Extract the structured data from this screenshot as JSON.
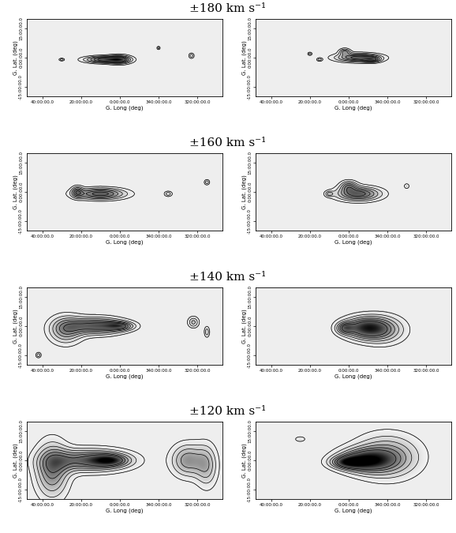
{
  "row_titles": [
    "±180 km s⁻¹",
    "±160 km s⁻¹",
    "±140 km s⁻¹",
    "±120 km s⁻¹"
  ],
  "chart_data": [
    {
      "type": "contour",
      "x_label": "G. Long (deg)",
      "y_label": "G. Lat. (deg)",
      "xlim": [
        48,
        -53
      ],
      "ylim": [
        -20,
        20
      ],
      "xticks": [
        {
          "value": 40,
          "label": "40:00:00.0"
        },
        {
          "value": 20,
          "label": "20:00:00.0"
        },
        {
          "value": 0,
          "label": "0:00:00.0"
        },
        {
          "value": -20,
          "label": "340:00:00.0"
        },
        {
          "value": -40,
          "label": "320:00:00.0"
        }
      ],
      "yticks": [
        {
          "value": -15,
          "label": "-15:00:00.0"
        },
        {
          "value": 0,
          "label": "0:00:00.0"
        },
        {
          "value": 15,
          "label": "15:00:00.0"
        }
      ],
      "contour_levels": [
        0.15,
        0.3,
        0.45,
        0.6,
        0.75,
        0.9
      ],
      "components": [
        [
          8,
          -1,
          7,
          1.2,
          1.0
        ],
        [
          0,
          -1,
          4,
          1.5,
          0.8
        ],
        [
          30,
          -1,
          1,
          0.5,
          0.4
        ],
        [
          -20,
          5,
          0.6,
          0.6,
          0.4
        ],
        [
          -37,
          1,
          1,
          1,
          0.4
        ]
      ]
    },
    {
      "type": "contour",
      "x_label": "G. Long (deg)",
      "y_label": "G. Lat. (deg)",
      "xlim": [
        48,
        -53
      ],
      "ylim": [
        -20,
        20
      ],
      "xticks": [
        {
          "value": 40,
          "label": "40:00:00.0"
        },
        {
          "value": 20,
          "label": "20:00:00.0"
        },
        {
          "value": 0,
          "label": "0:00:00.0"
        },
        {
          "value": -20,
          "label": "340:00:00.0"
        },
        {
          "value": -40,
          "label": "320:00:00.0"
        }
      ],
      "yticks": [
        {
          "value": -15,
          "label": "-15:00:00.0"
        },
        {
          "value": 0,
          "label": "0:00:00.0"
        },
        {
          "value": 15,
          "label": "15:00:00.0"
        }
      ],
      "contour_levels": [
        0.15,
        0.3,
        0.45,
        0.6,
        0.75,
        0.9
      ],
      "components": [
        [
          -5,
          0,
          8,
          1.5,
          1.0
        ],
        [
          2,
          3,
          2,
          1.2,
          0.6
        ],
        [
          -12,
          -1,
          3,
          1,
          0.6
        ],
        [
          15,
          -1,
          1,
          0.6,
          0.4
        ],
        [
          20,
          2,
          0.8,
          0.6,
          0.4
        ]
      ]
    },
    {
      "type": "contour",
      "x_label": "G. Long (deg)",
      "y_label": "G. Lat. (deg)",
      "xlim": [
        48,
        -53
      ],
      "ylim": [
        -20,
        20
      ],
      "xticks": [
        {
          "value": 40,
          "label": "40:00:00.0"
        },
        {
          "value": 20,
          "label": "20:00:00.0"
        },
        {
          "value": 0,
          "label": "0:00:00.0"
        },
        {
          "value": -20,
          "label": "340:00:00.0"
        },
        {
          "value": -40,
          "label": "320:00:00.0"
        }
      ],
      "yticks": [
        {
          "value": -15,
          "label": "-15:00:00.0"
        },
        {
          "value": 0,
          "label": "0:00:00.0"
        },
        {
          "value": 15,
          "label": "15:00:00.0"
        }
      ],
      "contour_levels": [
        0.15,
        0.3,
        0.45,
        0.6,
        0.75,
        0.9
      ],
      "components": [
        [
          10,
          -1,
          9,
          2,
          1.0
        ],
        [
          22,
          0,
          2,
          2,
          0.6
        ],
        [
          -25,
          -1,
          1.5,
          1,
          0.4
        ],
        [
          -45,
          5,
          1,
          1,
          0.4
        ]
      ]
    },
    {
      "type": "contour",
      "x_label": "G. Long (deg)",
      "y_label": "G. Lat. (deg)",
      "xlim": [
        48,
        -53
      ],
      "ylim": [
        -20,
        20
      ],
      "xticks": [
        {
          "value": 40,
          "label": "40:00:00.0"
        },
        {
          "value": 20,
          "label": "20:00:00.0"
        },
        {
          "value": 0,
          "label": "0:00:00.0"
        },
        {
          "value": -20,
          "label": "340:00:00.0"
        },
        {
          "value": -40,
          "label": "320:00:00.0"
        }
      ],
      "yticks": [
        {
          "value": -15,
          "label": "-15:00:00.0"
        },
        {
          "value": 0,
          "label": "0:00:00.0"
        },
        {
          "value": 15,
          "label": "15:00:00.0"
        }
      ],
      "contour_levels": [
        0.15,
        0.3,
        0.45,
        0.6,
        0.75,
        0.9
      ],
      "components": [
        [
          -5,
          -1,
          8,
          2.5,
          1.0
        ],
        [
          0,
          3,
          3,
          2,
          0.6
        ],
        [
          10,
          -1,
          1.5,
          1,
          0.4
        ],
        [
          -30,
          3,
          1,
          1,
          0.3
        ]
      ]
    },
    {
      "type": "contour",
      "x_label": "G. Long (deg)",
      "y_label": "G. Lat. (deg)",
      "xlim": [
        48,
        -53
      ],
      "ylim": [
        -20,
        20
      ],
      "xticks": [
        {
          "value": 40,
          "label": "40:00:00.0"
        },
        {
          "value": 20,
          "label": "20:00:00.0"
        },
        {
          "value": 0,
          "label": "0:00:00.0"
        },
        {
          "value": -20,
          "label": "340:00:00.0"
        },
        {
          "value": -40,
          "label": "320:00:00.0"
        }
      ],
      "yticks": [
        {
          "value": -15,
          "label": "-15:00:00.0"
        },
        {
          "value": 0,
          "label": "0:00:00.0"
        },
        {
          "value": 15,
          "label": "15:00:00.0"
        }
      ],
      "contour_levels": [
        0.15,
        0.3,
        0.45,
        0.6,
        0.75,
        0.9
      ],
      "components": [
        [
          12,
          0,
          10,
          3,
          1.0
        ],
        [
          28,
          -2,
          6,
          5,
          0.7
        ],
        [
          0,
          0,
          5,
          1.5,
          0.7
        ],
        [
          -38,
          2,
          2,
          2,
          0.5
        ],
        [
          -45,
          -3,
          1,
          2,
          0.4
        ],
        [
          42,
          -15,
          1,
          1,
          0.4
        ]
      ]
    },
    {
      "type": "contour",
      "x_label": "G. Long (deg)",
      "y_label": "G. Lat. (deg)",
      "xlim": [
        48,
        -53
      ],
      "ylim": [
        -20,
        20
      ],
      "xticks": [
        {
          "value": 40,
          "label": "40:00:00.0"
        },
        {
          "value": 20,
          "label": "20:00:00.0"
        },
        {
          "value": 0,
          "label": "0:00:00.0"
        },
        {
          "value": -20,
          "label": "340:00:00.0"
        },
        {
          "value": -40,
          "label": "320:00:00.0"
        }
      ],
      "yticks": [
        {
          "value": -15,
          "label": "-15:00:00.0"
        },
        {
          "value": 0,
          "label": "0:00:00.0"
        },
        {
          "value": 15,
          "label": "15:00:00.0"
        }
      ],
      "contour_levels": [
        0.15,
        0.3,
        0.45,
        0.6,
        0.75,
        0.9
      ],
      "components": [
        [
          -8,
          -1,
          8,
          4,
          1.0
        ],
        [
          -18,
          -2,
          8,
          5,
          0.6
        ],
        [
          2,
          -1,
          3,
          2,
          0.6
        ]
      ]
    },
    {
      "type": "contour",
      "x_label": "G. Long (deg)",
      "y_label": "G. Lat. (deg)",
      "xlim": [
        48,
        -53
      ],
      "ylim": [
        -20,
        20
      ],
      "xticks": [
        {
          "value": 40,
          "label": "40:00:00.0"
        },
        {
          "value": 20,
          "label": "20:00:00.0"
        },
        {
          "value": 0,
          "label": "0:00:00.0"
        },
        {
          "value": -20,
          "label": "340:00:00.0"
        },
        {
          "value": -40,
          "label": "320:00:00.0"
        }
      ],
      "yticks": [
        {
          "value": -15,
          "label": "-15:00:00.0"
        },
        {
          "value": 0,
          "label": "0:00:00.0"
        },
        {
          "value": 15,
          "label": "15:00:00.0"
        }
      ],
      "contour_levels": [
        0.15,
        0.3,
        0.45,
        0.6,
        0.75,
        0.9
      ],
      "components": [
        [
          15,
          0,
          14,
          4,
          1.0
        ],
        [
          35,
          -5,
          6,
          10,
          0.8
        ],
        [
          -35,
          0,
          6,
          6,
          0.7
        ],
        [
          -45,
          -3,
          4,
          8,
          0.5
        ],
        [
          5,
          0,
          6,
          2,
          0.7
        ]
      ]
    },
    {
      "type": "contour",
      "x_label": "G. Long (deg)",
      "y_label": "G. Lat. (deg)",
      "xlim": [
        48,
        -53
      ],
      "ylim": [
        -20,
        20
      ],
      "xticks": [
        {
          "value": 40,
          "label": "40:00:00.0"
        },
        {
          "value": 20,
          "label": "20:00:00.0"
        },
        {
          "value": 0,
          "label": "0:00:00.0"
        },
        {
          "value": -20,
          "label": "340:00:00.0"
        },
        {
          "value": -40,
          "label": "320:00:00.0"
        }
      ],
      "yticks": [
        {
          "value": -15,
          "label": "-15:00:00.0"
        },
        {
          "value": 0,
          "label": "0:00:00.0"
        },
        {
          "value": 15,
          "label": "15:00:00.0"
        }
      ],
      "contour_levels": [
        0.15,
        0.3,
        0.45,
        0.6,
        0.75,
        0.9
      ],
      "components": [
        [
          -8,
          0,
          10,
          4,
          1.0
        ],
        [
          -20,
          2,
          12,
          8,
          0.7
        ],
        [
          0,
          -1,
          6,
          2,
          0.8
        ],
        [
          25,
          11,
          2,
          1,
          0.3
        ]
      ]
    }
  ]
}
